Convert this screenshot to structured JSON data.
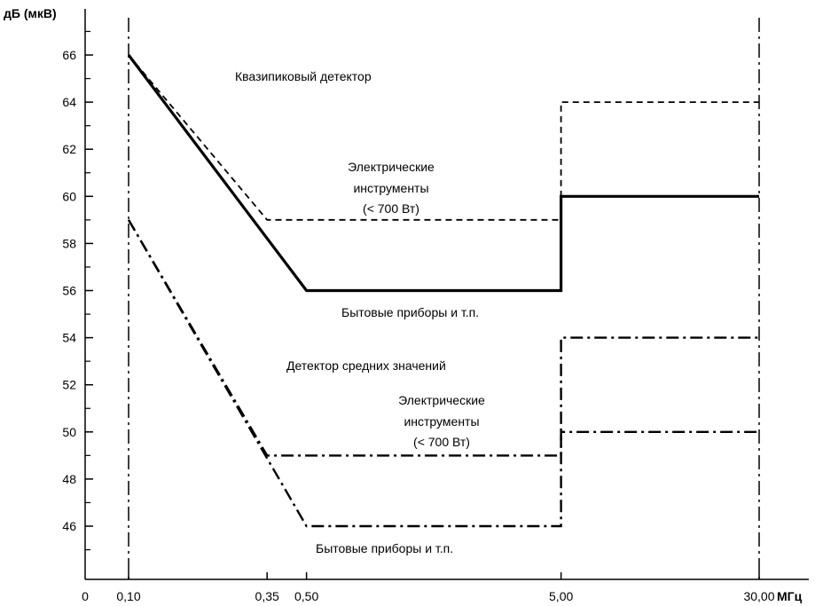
{
  "chart_data": {
    "type": "line",
    "title": "",
    "ylabel": "дБ (мкВ)",
    "xlabel": "",
    "x_unit": "МГц",
    "x_scale": "log",
    "ylim": [
      44,
      68
    ],
    "y_ticks": [
      46,
      48,
      50,
      52,
      54,
      56,
      58,
      60,
      62,
      64,
      66
    ],
    "x_ticks": [
      {
        "value": 0.1,
        "label": "0,10"
      },
      {
        "value": 0.35,
        "label": "0,35"
      },
      {
        "value": 0.5,
        "label": "0,50"
      },
      {
        "value": 5,
        "label": "5,00"
      },
      {
        "value": 30,
        "label": "30,00"
      }
    ],
    "x_origin_label": "0",
    "grid": false,
    "series": [
      {
        "style": "dashed",
        "points": [
          [
            0.1,
            66
          ],
          [
            0.35,
            59
          ],
          [
            5,
            59
          ],
          [
            5,
            64
          ],
          [
            30,
            64
          ]
        ]
      },
      {
        "style": "solid",
        "points": [
          [
            0.1,
            66
          ],
          [
            0.5,
            56
          ],
          [
            5,
            56
          ],
          [
            5,
            60
          ],
          [
            30,
            60
          ]
        ]
      },
      {
        "style": "dash-dot",
        "points": [
          [
            0.1,
            59
          ],
          [
            0.35,
            49
          ],
          [
            5,
            49
          ],
          [
            5,
            54
          ],
          [
            30,
            54
          ]
        ]
      },
      {
        "style": "dash-dot",
        "points": [
          [
            0.1,
            59
          ],
          [
            0.5,
            46
          ],
          [
            5,
            46
          ],
          [
            5,
            50
          ],
          [
            30,
            50
          ]
        ]
      }
    ],
    "annotations": {
      "qp_detector": "Квазипиковый детектор",
      "qp_tools": [
        "Электрические",
        "инструменты",
        "(< 700 Вт)"
      ],
      "qp_household": "Бытовые приборы и т.п.",
      "avg_detector": "Детектор средних значений",
      "avg_tools": [
        "Электрические",
        "инструменты",
        "(< 700 Вт)"
      ],
      "avg_household": "Бытовые приборы и т.п."
    }
  }
}
